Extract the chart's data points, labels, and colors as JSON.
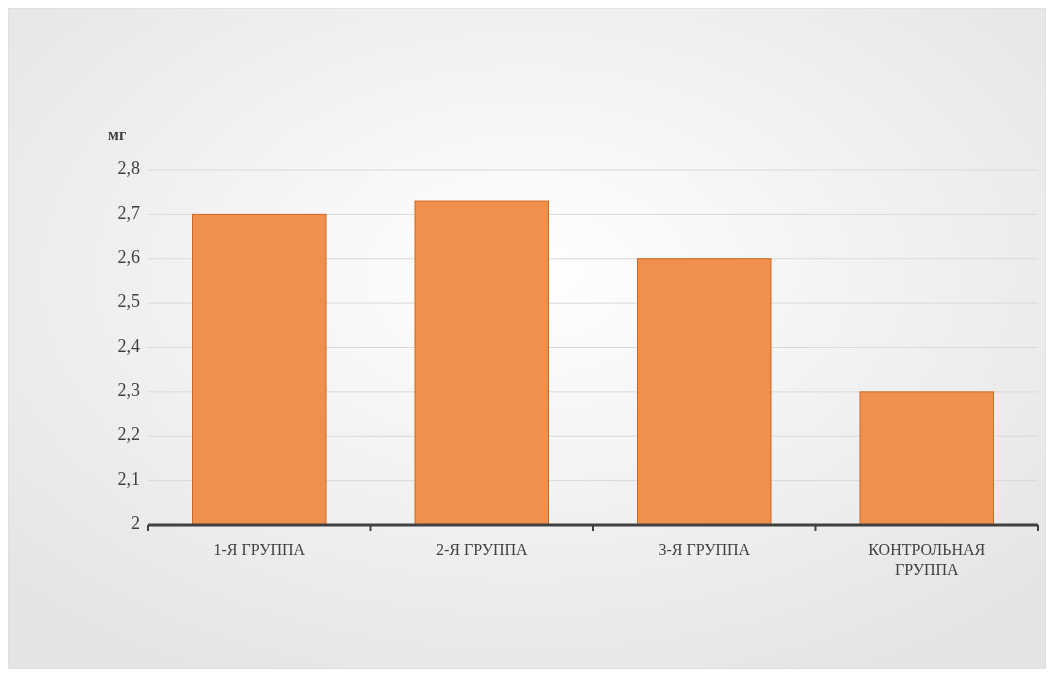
{
  "chart_data": {
    "type": "bar",
    "ylabel": "мг",
    "categories": [
      "1-Я ГРУППА",
      "2-Я ГРУППА",
      "3-Я ГРУППА",
      "КОНТРОЛЬНАЯ ГРУППА"
    ],
    "values": [
      2.7,
      2.73,
      2.6,
      2.3
    ],
    "color": "#f0904f",
    "ylim": [
      2,
      2.8
    ],
    "yticks": [
      2,
      {
        "value": 2.1,
        "label": "2,1"
      },
      {
        "value": 2.2,
        "label": "2,2"
      },
      {
        "value": 2.3,
        "label": "2,3"
      },
      {
        "value": 2.4,
        "label": "2,4"
      },
      {
        "value": 2.5,
        "label": "2,5"
      },
      {
        "value": 2.6,
        "label": "2,6"
      },
      {
        "value": 2.7,
        "label": "2,7"
      },
      {
        "value": 2.8,
        "label": "2,8"
      }
    ],
    "grid": "y"
  }
}
